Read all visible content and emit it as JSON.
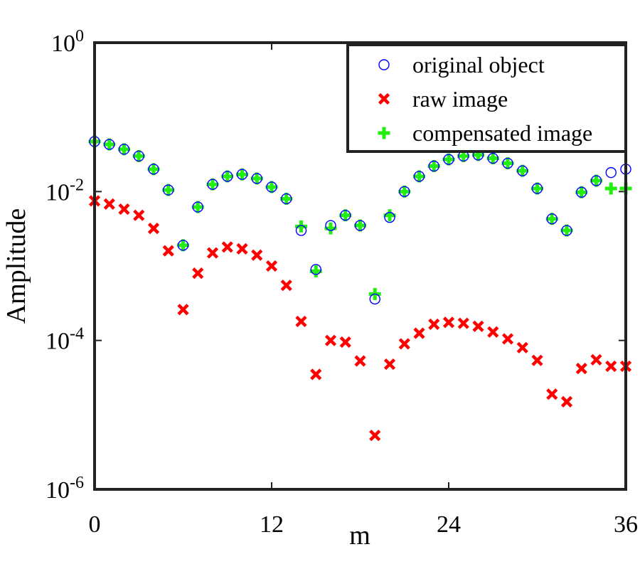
{
  "chart_data": {
    "type": "scatter",
    "title": "",
    "xlabel": "m",
    "ylabel": "Amplitude",
    "xlim": [
      0,
      36
    ],
    "ylim": [
      1e-06,
      1
    ],
    "yscale": "log",
    "xticks": [
      0,
      12,
      24,
      36
    ],
    "xtick_labels": [
      "0",
      "12",
      "24",
      "36"
    ],
    "yticks": [
      {
        "value": 1,
        "base": "10",
        "exp": "0"
      },
      {
        "value": 0.01,
        "base": "10",
        "exp": "-2"
      },
      {
        "value": 0.0001,
        "base": "10",
        "exp": "-4"
      },
      {
        "value": 1e-06,
        "base": "10",
        "exp": "-6"
      }
    ],
    "legend_position": "top-right",
    "series": [
      {
        "name": "original object",
        "marker": "circle",
        "color": "#0000ff",
        "x": [
          0,
          1,
          2,
          3,
          4,
          5,
          6,
          7,
          8,
          9,
          10,
          11,
          12,
          13,
          14,
          15,
          16,
          17,
          18,
          19,
          20,
          21,
          22,
          23,
          24,
          25,
          26,
          27,
          28,
          29,
          30,
          31,
          32,
          33,
          34,
          35,
          36
        ],
        "y": [
          0.047,
          0.043,
          0.037,
          0.03,
          0.02,
          0.0105,
          0.0019,
          0.0062,
          0.0125,
          0.016,
          0.017,
          0.015,
          0.0115,
          0.008,
          0.003,
          0.0009,
          0.0035,
          0.0048,
          0.0035,
          0.00036,
          0.0045,
          0.01,
          0.016,
          0.022,
          0.027,
          0.03,
          0.031,
          0.028,
          0.024,
          0.019,
          0.011,
          0.0043,
          0.003,
          0.0098,
          0.014,
          0.018,
          0.02
        ]
      },
      {
        "name": "raw image",
        "marker": "x",
        "color": "#ff0000",
        "x": [
          0,
          1,
          2,
          3,
          4,
          5,
          6,
          7,
          8,
          9,
          10,
          11,
          12,
          13,
          14,
          15,
          16,
          17,
          18,
          19,
          20,
          21,
          22,
          23,
          24,
          25,
          26,
          27,
          28,
          29,
          30,
          31,
          32,
          33,
          34,
          35,
          36
        ],
        "y": [
          0.0075,
          0.0068,
          0.0058,
          0.0048,
          0.0032,
          0.0016,
          0.00026,
          0.0008,
          0.0015,
          0.0018,
          0.0017,
          0.0014,
          0.001,
          0.00055,
          0.00018,
          3.5e-05,
          0.0001,
          9.5e-05,
          5.3e-05,
          5.3e-06,
          4.8e-05,
          9e-05,
          0.000125,
          0.000165,
          0.000175,
          0.00017,
          0.000155,
          0.00013,
          0.000105,
          8e-05,
          5.4e-05,
          1.9e-05,
          1.5e-05,
          4.2e-05,
          5.5e-05,
          4.5e-05,
          4.5e-05
        ]
      },
      {
        "name": "compensated image",
        "marker": "plus",
        "color": "#22ee11",
        "x": [
          0,
          1,
          2,
          3,
          4,
          5,
          6,
          7,
          8,
          9,
          10,
          11,
          12,
          13,
          14,
          15,
          16,
          17,
          18,
          19,
          20,
          21,
          22,
          23,
          24,
          25,
          26,
          27,
          28,
          29,
          30,
          31,
          32,
          33,
          34,
          35,
          36
        ],
        "y": [
          0.047,
          0.043,
          0.037,
          0.03,
          0.02,
          0.0105,
          0.0019,
          0.0062,
          0.0125,
          0.016,
          0.017,
          0.015,
          0.0115,
          0.008,
          0.0034,
          0.00085,
          0.0032,
          0.0048,
          0.0035,
          0.00042,
          0.0048,
          0.01,
          0.016,
          0.022,
          0.027,
          0.03,
          0.031,
          0.028,
          0.024,
          0.019,
          0.011,
          0.0043,
          0.003,
          0.0098,
          0.014,
          0.011,
          0.011
        ]
      }
    ]
  }
}
